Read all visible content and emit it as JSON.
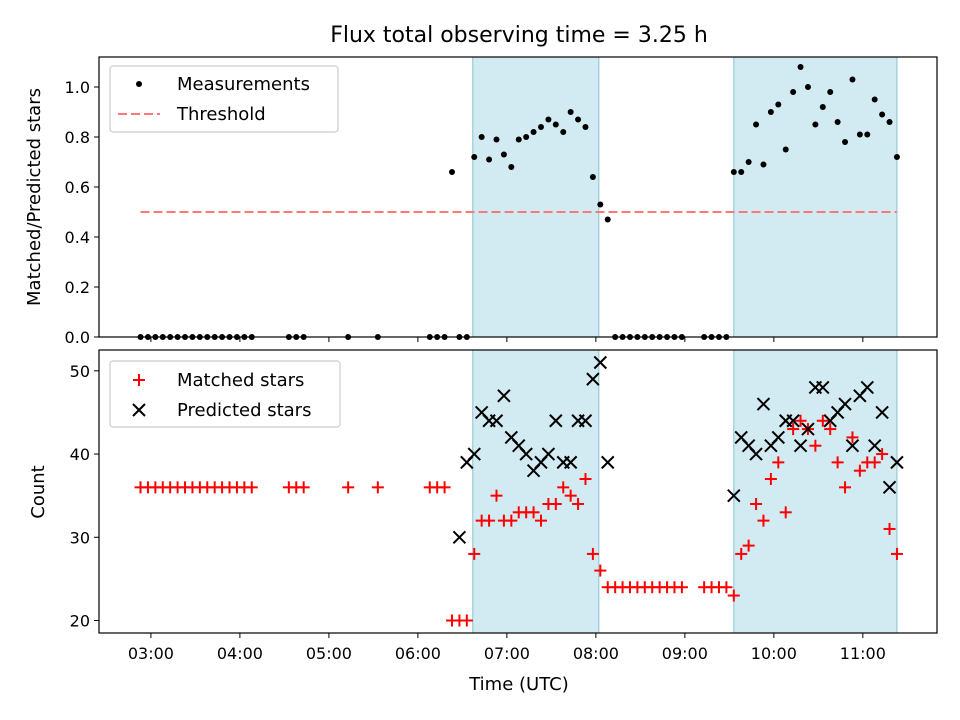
{
  "colors": {
    "shade": "#add8e6",
    "shade_edge": "#88c2d2",
    "measurement": "#000000",
    "threshold": "#ff7878",
    "matched": "#ff0000",
    "predicted": "#000000"
  },
  "chart_data": [
    {
      "type": "scatter",
      "title": "Flux total observing time = 3.25 h",
      "xlabel": "",
      "ylabel": "Matched/Predicted stars",
      "xlim": [
        "02:25",
        "11:50"
      ],
      "ylim": [
        0,
        1.12
      ],
      "yticks": [
        0.0,
        0.2,
        0.4,
        0.6,
        0.8,
        1.0
      ],
      "ytick_labels": [
        "0.0",
        "0.2",
        "0.4",
        "0.6",
        "0.8",
        "1.0"
      ],
      "legend_position": "upper left",
      "shaded_regions": [
        [
          "06:37",
          "08:02"
        ],
        [
          "09:33",
          "11:23"
        ]
      ],
      "series": [
        {
          "name": "Measurements",
          "marker": "dot",
          "x": [
            "02:53",
            "02:58",
            "03:03",
            "03:08",
            "03:13",
            "03:18",
            "03:23",
            "03:28",
            "03:33",
            "03:38",
            "03:43",
            "03:48",
            "03:53",
            "03:58",
            "04:03",
            "04:08",
            "04:33",
            "04:38",
            "04:43",
            "05:13",
            "05:33",
            "06:08",
            "06:13",
            "06:18",
            "06:23",
            "06:28",
            "06:33",
            "06:38",
            "06:43",
            "06:48",
            "06:53",
            "06:58",
            "07:03",
            "07:08",
            "07:13",
            "07:18",
            "07:23",
            "07:28",
            "07:33",
            "07:38",
            "07:43",
            "07:48",
            "07:53",
            "07:58",
            "08:03",
            "08:08",
            "08:13",
            "08:18",
            "08:23",
            "08:28",
            "08:33",
            "08:38",
            "08:43",
            "08:48",
            "08:53",
            "08:58",
            "09:13",
            "09:18",
            "09:23",
            "09:28",
            "09:33",
            "09:38",
            "09:43",
            "09:48",
            "09:53",
            "09:58",
            "10:03",
            "10:08",
            "10:13",
            "10:18",
            "10:23",
            "10:28",
            "10:33",
            "10:38",
            "10:43",
            "10:48",
            "10:53",
            "10:58",
            "11:03",
            "11:08",
            "11:13",
            "11:18",
            "11:23"
          ],
          "y": [
            0,
            0,
            0,
            0,
            0,
            0,
            0,
            0,
            0,
            0,
            0,
            0,
            0,
            0,
            0,
            0,
            0,
            0,
            0,
            0,
            0,
            0,
            0,
            0,
            0.66,
            0,
            0,
            0.72,
            0.8,
            0.71,
            0.79,
            0.73,
            0.68,
            0.79,
            0.8,
            0.82,
            0.84,
            0.87,
            0.85,
            0.82,
            0.9,
            0.87,
            0.84,
            0.64,
            0.53,
            0.47,
            0,
            0,
            0,
            0,
            0,
            0,
            0,
            0,
            0,
            0,
            0,
            0,
            0,
            0,
            0.66,
            0.66,
            0.7,
            0.85,
            0.69,
            0.9,
            0.93,
            0.75,
            0.98,
            1.08,
            1.0,
            0.85,
            0.92,
            0.98,
            0.86,
            0.78,
            1.03,
            0.81,
            0.81,
            0.95,
            0.89,
            0.86,
            0.72
          ]
        },
        {
          "name": "Threshold",
          "marker": "dashed-line",
          "x": [
            "02:53",
            "11:23"
          ],
          "y": [
            0.5,
            0.5
          ]
        }
      ]
    },
    {
      "type": "scatter",
      "title": "",
      "xlabel": "Time (UTC)",
      "ylabel": "Count",
      "xlim": [
        "02:25",
        "11:50"
      ],
      "ylim": [
        18.5,
        52.5
      ],
      "yticks": [
        20,
        30,
        40,
        50
      ],
      "ytick_labels": [
        "20",
        "30",
        "40",
        "50"
      ],
      "xticks": [
        "03:00",
        "04:00",
        "05:00",
        "06:00",
        "07:00",
        "08:00",
        "09:00",
        "10:00",
        "11:00"
      ],
      "xtick_labels": [
        "03:00",
        "04:00",
        "05:00",
        "06:00",
        "07:00",
        "08:00",
        "09:00",
        "10:00",
        "11:00"
      ],
      "legend_position": "upper left",
      "shaded_regions": [
        [
          "06:37",
          "08:02"
        ],
        [
          "09:33",
          "11:23"
        ]
      ],
      "series": [
        {
          "name": "Matched stars",
          "marker": "plus",
          "x": [
            "02:53",
            "02:58",
            "03:03",
            "03:08",
            "03:13",
            "03:18",
            "03:23",
            "03:28",
            "03:33",
            "03:38",
            "03:43",
            "03:48",
            "03:53",
            "03:58",
            "04:03",
            "04:08",
            "04:33",
            "04:38",
            "04:43",
            "05:13",
            "05:33",
            "06:08",
            "06:13",
            "06:18",
            "06:23",
            "06:28",
            "06:33",
            "06:38",
            "06:43",
            "06:48",
            "06:53",
            "06:58",
            "07:03",
            "07:08",
            "07:13",
            "07:18",
            "07:23",
            "07:28",
            "07:33",
            "07:38",
            "07:43",
            "07:48",
            "07:53",
            "07:58",
            "08:03",
            "08:08",
            "08:13",
            "08:18",
            "08:23",
            "08:28",
            "08:33",
            "08:38",
            "08:43",
            "08:48",
            "08:53",
            "08:58",
            "09:13",
            "09:18",
            "09:23",
            "09:28",
            "09:33",
            "09:38",
            "09:43",
            "09:48",
            "09:53",
            "09:58",
            "10:03",
            "10:08",
            "10:13",
            "10:18",
            "10:23",
            "10:28",
            "10:33",
            "10:38",
            "10:43",
            "10:48",
            "10:53",
            "10:58",
            "11:03",
            "11:08",
            "11:13",
            "11:18",
            "11:23"
          ],
          "y": [
            36,
            36,
            36,
            36,
            36,
            36,
            36,
            36,
            36,
            36,
            36,
            36,
            36,
            36,
            36,
            36,
            36,
            36,
            36,
            36,
            36,
            36,
            36,
            36,
            20,
            20,
            20,
            28,
            32,
            32,
            35,
            32,
            32,
            33,
            33,
            33,
            32,
            34,
            34,
            36,
            35,
            34,
            37,
            28,
            26,
            24,
            24,
            24,
            24,
            24,
            24,
            24,
            24,
            24,
            24,
            24,
            24,
            24,
            24,
            24,
            23,
            28,
            29,
            34,
            32,
            37,
            39,
            33,
            43,
            44,
            43,
            41,
            44,
            43,
            39,
            36,
            42,
            38,
            39,
            39,
            40,
            31,
            28
          ]
        },
        {
          "name": "Predicted stars",
          "marker": "x",
          "x": [
            "06:28",
            "06:33",
            "06:38",
            "06:43",
            "06:48",
            "06:53",
            "06:58",
            "07:03",
            "07:08",
            "07:13",
            "07:18",
            "07:23",
            "07:28",
            "07:33",
            "07:38",
            "07:43",
            "07:48",
            "07:53",
            "07:58",
            "08:03",
            "08:08",
            "09:33",
            "09:38",
            "09:43",
            "09:48",
            "09:53",
            "09:58",
            "10:03",
            "10:08",
            "10:13",
            "10:18",
            "10:23",
            "10:28",
            "10:33",
            "10:38",
            "10:43",
            "10:48",
            "10:53",
            "10:58",
            "11:03",
            "11:08",
            "11:13",
            "11:18",
            "11:23"
          ],
          "y": [
            30,
            39,
            40,
            45,
            44,
            44,
            47,
            42,
            41,
            40,
            38,
            39,
            40,
            44,
            39,
            39,
            44,
            44,
            49,
            51,
            39,
            35,
            42,
            41,
            40,
            46,
            41,
            42,
            44,
            44,
            41,
            43,
            48,
            48,
            44,
            45,
            46,
            41,
            47,
            48,
            41,
            45,
            36,
            39
          ]
        }
      ]
    }
  ]
}
